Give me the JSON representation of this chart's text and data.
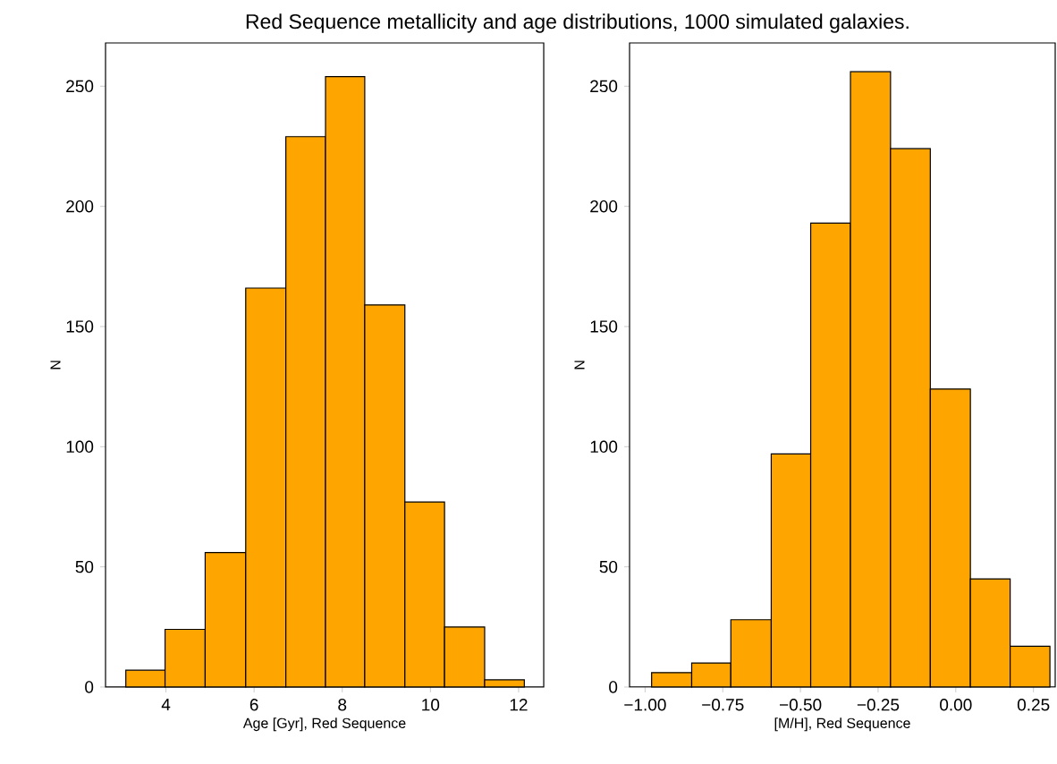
{
  "chart_data": [
    {
      "type": "histogram",
      "title": "Red Sequence metallicity and age distributions, 1000 simulated galaxies.",
      "xlabel": "Age [Gyr], Red Sequence",
      "ylabel": "N",
      "bins": [
        3.09,
        3.98,
        4.89,
        5.81,
        6.72,
        7.62,
        8.51,
        9.42,
        10.32,
        11.23,
        12.13
      ],
      "values": [
        7,
        24,
        56,
        166,
        229,
        254,
        159,
        77,
        25,
        3
      ],
      "color": "#ffa500",
      "xlim": [
        2.63,
        12.57
      ],
      "ylim": [
        0,
        268
      ],
      "xticks": [
        4,
        6,
        8,
        10,
        12
      ],
      "yticks": [
        0,
        50,
        100,
        150,
        200,
        250
      ]
    },
    {
      "type": "histogram",
      "xlabel": "[M/H], Red Sequence",
      "ylabel": "N",
      "bins": [
        -0.979,
        -0.85,
        -0.724,
        -0.594,
        -0.467,
        -0.339,
        -0.21,
        -0.082,
        0.047,
        0.175,
        0.303
      ],
      "values": [
        6,
        10,
        28,
        97,
        193,
        256,
        224,
        124,
        45,
        17
      ],
      "color": "#ffa500",
      "xlim": [
        -1.05,
        0.32
      ],
      "ylim": [
        0,
        268
      ],
      "xticks": [
        {
          "value": -1.0,
          "label": "−1.00"
        },
        {
          "value": -0.75,
          "label": "−0.75"
        },
        {
          "value": -0.5,
          "label": "−0.50"
        },
        {
          "value": -0.25,
          "label": "−0.25"
        },
        {
          "value": 0.0,
          "label": "0.00"
        },
        {
          "value": 0.25,
          "label": "0.25"
        }
      ],
      "yticks": [
        0,
        50,
        100,
        150,
        200,
        250
      ]
    }
  ]
}
